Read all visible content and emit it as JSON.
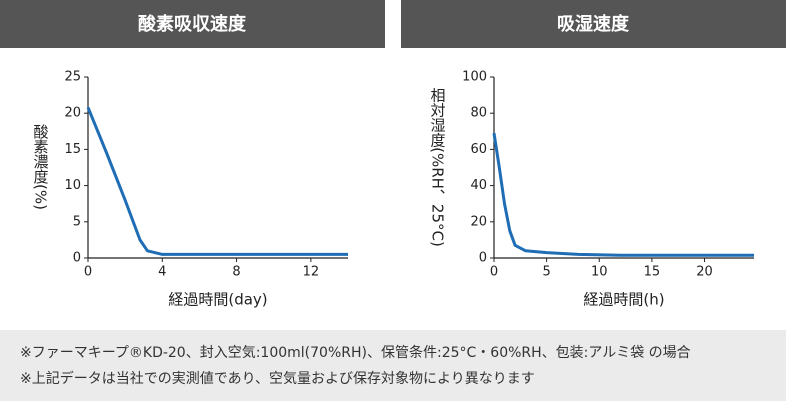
{
  "chart_data": [
    {
      "type": "line",
      "title": "酸素吸収速度",
      "x_label": "経過時間(day)",
      "y_label": "酸素濃度(%)",
      "xlim": [
        0,
        14
      ],
      "ylim": [
        0,
        25
      ],
      "xticks": [
        0,
        4,
        8,
        12
      ],
      "yticks": [
        0,
        5,
        10,
        15,
        20,
        25
      ],
      "color": "#1f6db5",
      "x": [
        0,
        1,
        2,
        2.8,
        3.2,
        4,
        6,
        8,
        10,
        12,
        14
      ],
      "values": [
        20.8,
        14.5,
        8,
        2.5,
        1,
        0.5,
        0.5,
        0.5,
        0.5,
        0.5,
        0.5
      ]
    },
    {
      "type": "line",
      "title": "吸湿速度",
      "x_label": "経過時間(h)",
      "y_label": "相対湿度(%RH、25°C)",
      "xlim": [
        0,
        24.7
      ],
      "ylim": [
        0,
        100
      ],
      "xticks": [
        0,
        5,
        10,
        15,
        20
      ],
      "yticks": [
        0,
        20,
        40,
        60,
        80,
        100
      ],
      "color": "#1f6db5",
      "x": [
        0,
        0.5,
        1,
        1.5,
        2,
        3,
        5,
        8,
        12,
        18,
        24.7
      ],
      "values": [
        69,
        50,
        30,
        15,
        7,
        4,
        3,
        2,
        1.5,
        1.5,
        1.5
      ]
    }
  ],
  "notes": [
    "※ファーマキープ®KD-20、封入空気:100ml(70%RH)、保管条件:25°C・60%RH、包装:アルミ袋 の場合",
    "※上記データは当社での実測値であり、空気量および保存対象物により異なります"
  ]
}
